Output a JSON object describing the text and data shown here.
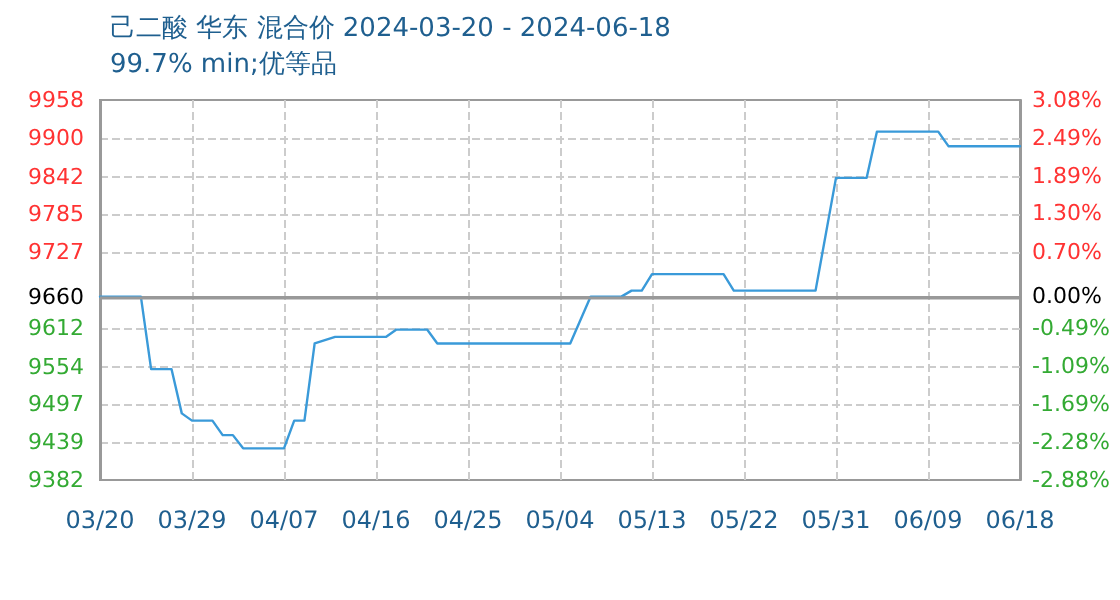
{
  "chart_data": {
    "type": "line",
    "title": "己二酸 华东 混合价 2024-03-20 - 2024-06-18",
    "subtitle": "99.7% min;优等品",
    "x": [
      "2024-03-20",
      "2024-03-24",
      "2024-03-25",
      "2024-03-27",
      "2024-03-28",
      "2024-03-29",
      "2024-03-31",
      "2024-04-01",
      "2024-04-02",
      "2024-04-03",
      "2024-04-07",
      "2024-04-08",
      "2024-04-09",
      "2024-04-10",
      "2024-04-12",
      "2024-04-17",
      "2024-04-18",
      "2024-04-21",
      "2024-04-22",
      "2024-05-05",
      "2024-05-07",
      "2024-05-10",
      "2024-05-11",
      "2024-05-12",
      "2024-05-13",
      "2024-05-20",
      "2024-05-21",
      "2024-05-29",
      "2024-05-31",
      "2024-06-03",
      "2024-06-04",
      "2024-06-10",
      "2024-06-11",
      "2024-06-18"
    ],
    "series": [
      {
        "color": "#3a9ad9",
        "values": [
          9660,
          9660,
          9550,
          9550,
          9483,
          9472,
          9472,
          9450,
          9450,
          9430,
          9430,
          9472,
          9472,
          9589,
          9599,
          9599,
          9610,
          9610,
          9589,
          9589,
          9660,
          9660,
          9669,
          9669,
          9694,
          9694,
          9669,
          9669,
          9840,
          9840,
          9910,
          9910,
          9888,
          9888
        ]
      }
    ],
    "xlim": [
      "2024-03-20",
      "2024-06-18"
    ],
    "xticks": [
      {
        "value": "2024-03-20",
        "label": "03/20"
      },
      {
        "value": "2024-03-29",
        "label": "03/29"
      },
      {
        "value": "2024-04-07",
        "label": "04/07"
      },
      {
        "value": "2024-04-16",
        "label": "04/16"
      },
      {
        "value": "2024-04-25",
        "label": "04/25"
      },
      {
        "value": "2024-05-04",
        "label": "05/04"
      },
      {
        "value": "2024-05-13",
        "label": "05/13"
      },
      {
        "value": "2024-05-22",
        "label": "05/22"
      },
      {
        "value": "2024-05-31",
        "label": "05/31"
      },
      {
        "value": "2024-06-09",
        "label": "06/09"
      },
      {
        "value": "2024-06-18",
        "label": "06/18"
      }
    ],
    "ylim": [
      9382,
      9958
    ],
    "yticks": [
      9382,
      9439,
      9497,
      9554,
      9612,
      9660,
      9727,
      9785,
      9842,
      9900,
      9958
    ],
    "y2lim": [
      -2.88,
      3.08
    ],
    "y2ticks": [
      {
        "value": -2.88,
        "label": "-2.88%"
      },
      {
        "value": -2.28,
        "label": "-2.28%"
      },
      {
        "value": -1.69,
        "label": "-1.69%"
      },
      {
        "value": -1.09,
        "label": "-1.09%"
      },
      {
        "value": -0.49,
        "label": "-0.49%"
      },
      {
        "value": 0,
        "label": "0.00%"
      },
      {
        "value": 0.7,
        "label": "0.70%"
      },
      {
        "value": 1.3,
        "label": "1.30%"
      },
      {
        "value": 1.89,
        "label": "1.89%"
      },
      {
        "value": 2.49,
        "label": "2.49%"
      },
      {
        "value": 3.08,
        "label": "3.08%"
      }
    ],
    "ref_lines": [
      {
        "axis": "y",
        "value": 9660,
        "color": "#999999"
      }
    ],
    "grid": true,
    "marker": "none",
    "line_style": "solid"
  }
}
